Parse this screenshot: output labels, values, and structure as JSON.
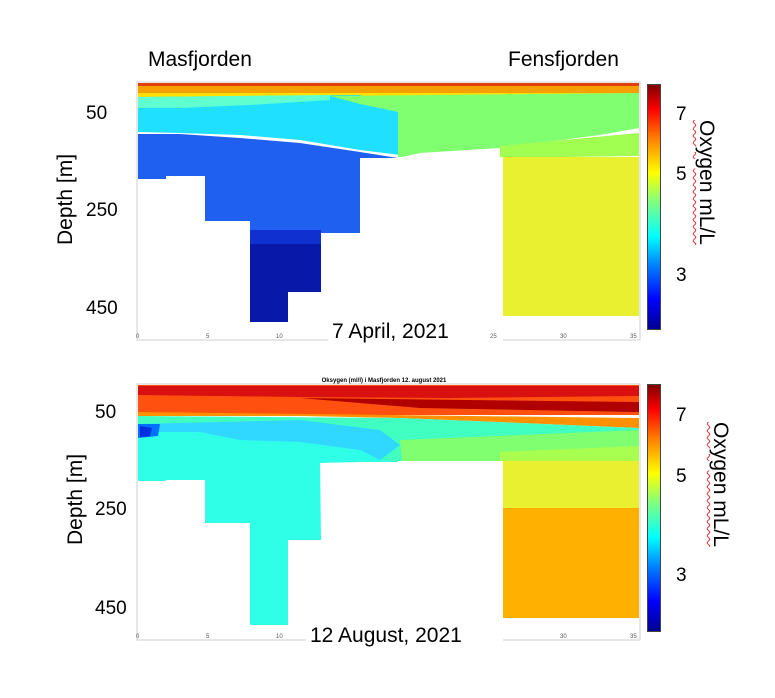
{
  "labels": {
    "left_fjord": "Masfjorden",
    "right_fjord": "Fensfjorden",
    "ylabel": "Depth [m]",
    "colorbar_label": "Oxygen mL/L"
  },
  "chart_data": [
    {
      "type": "heatmap",
      "title": "",
      "caption": "7 April, 2021",
      "xlabel": "",
      "ylabel": "Depth [m]",
      "xlim": [
        0,
        36
      ],
      "x_ticks": [
        0,
        5,
        10,
        15,
        20,
        25,
        30,
        35
      ],
      "y_ticks": [
        "50",
        "250",
        "450"
      ],
      "colorbar": {
        "label": "Oxygen mL/L",
        "range": [
          2,
          8
        ],
        "ticks": [
          3,
          5,
          7
        ]
      },
      "surface_layer_oxygen": 6.3,
      "basin_oxygen": {
        "Masfjorden_upper": 3.9,
        "Masfjorden_deep": 2.9,
        "Masfjorden_deepest": 2.2,
        "Fensfjorden_deep": 5.2
      }
    },
    {
      "type": "heatmap",
      "title": "Oksygen (ml/l) i Masfjorden 12. august 2021",
      "caption": "12 August, 2021",
      "xlabel": "",
      "ylabel": "Depth [m]",
      "xlim": [
        0,
        36
      ],
      "x_ticks": [
        0,
        5,
        10,
        15,
        20,
        25,
        30,
        35
      ],
      "y_ticks": [
        "50",
        "250",
        "450"
      ],
      "colorbar": {
        "label": "Oxygen mL/L",
        "range": [
          2,
          8
        ],
        "ticks": [
          3,
          5,
          7
        ]
      },
      "surface_layer_oxygen": 7.2,
      "basin_oxygen": {
        "Masfjorden_deep": 3.7,
        "Fensfjorden_upper": 5.1,
        "Fensfjorden_deep": 5.9
      }
    }
  ]
}
